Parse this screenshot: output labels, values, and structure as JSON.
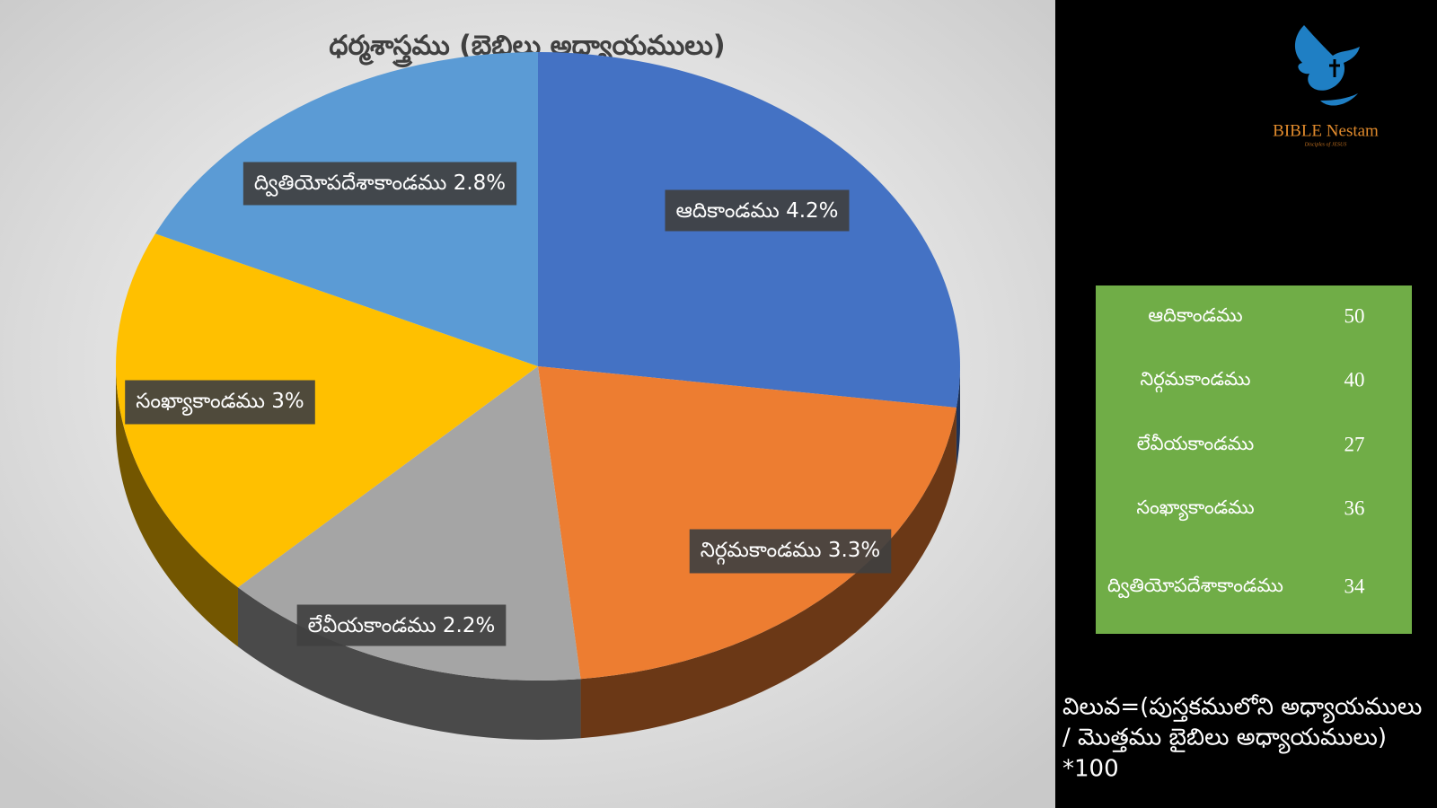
{
  "chart_data": {
    "type": "pie",
    "title": "ధర్మశాస్త్రము (బైబిలు అధ్యాయములు)",
    "categories": [
      "ఆదికాండము",
      "నిర్గమకాండము",
      "లేవీయకాండము",
      "సంఖ్యాకాండము",
      "ద్వితియోపదేశాకాండము"
    ],
    "values": [
      4.2,
      3.3,
      2.2,
      3,
      2.8
    ],
    "value_labels": [
      "4.2%",
      "3.3%",
      "2.2%",
      "3%",
      "2.8%"
    ],
    "colors": [
      "#4472c4",
      "#ed7d31",
      "#a5a5a5",
      "#ffc000",
      "#5b9bd5"
    ]
  },
  "table": {
    "rows": [
      [
        "ఆదికాండము",
        "50"
      ],
      [
        "నిర్గమకాండము",
        "40"
      ],
      [
        "లేవీయకాండము",
        "27"
      ],
      [
        "సంఖ్యాకాండము",
        "36"
      ],
      [
        "ద్వితియోపదేశాకాండము",
        "34"
      ]
    ]
  },
  "formula": [
    "విలువ=(పుస్తకములోని అధ్యాయములు",
    "/ మొత్తము బైబిలు అధ్యాయములు)",
    "*100"
  ],
  "logo": {
    "name": "BIBLE Nestam",
    "tagline": "Disciples of JESUS"
  }
}
